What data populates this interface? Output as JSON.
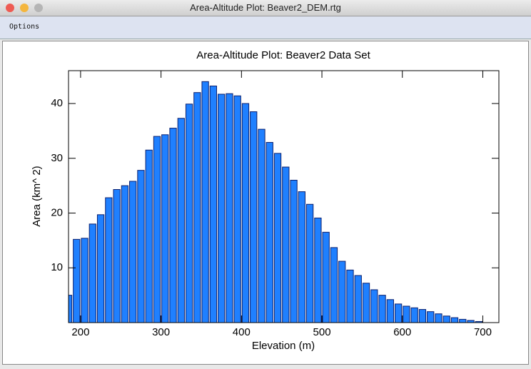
{
  "window": {
    "title": "Area-Altitude Plot: Beaver2_DEM.rtg",
    "menu": [
      "Options"
    ]
  },
  "chart_data": {
    "type": "histogram",
    "title": "Area-Altitude Plot: Beaver2 Data Set",
    "x_label": "Elevation (m)",
    "y_label": "Area (km^ 2)",
    "bins": [
      180,
      190,
      200,
      210,
      220,
      230,
      240,
      250,
      260,
      270,
      280,
      290,
      300,
      310,
      320,
      330,
      340,
      350,
      360,
      370,
      380,
      390,
      400,
      410,
      420,
      430,
      440,
      450,
      460,
      470,
      480,
      490,
      500,
      510,
      520,
      530,
      540,
      550,
      560,
      570,
      580,
      590,
      600,
      610,
      620,
      630,
      640,
      650,
      660,
      670,
      680,
      690,
      700
    ],
    "values": [
      5,
      15.2,
      15.4,
      18,
      19.7,
      22.8,
      24.3,
      25,
      25.8,
      27.8,
      31.5,
      34,
      34.3,
      35.5,
      37.3,
      39.9,
      42,
      44,
      43.2,
      41.7,
      41.8,
      41.4,
      40,
      38.5,
      35.3,
      32.9,
      30.9,
      28.4,
      26,
      23.9,
      21.6,
      19.1,
      16.5,
      13.7,
      11.2,
      9.6,
      8.6,
      7.2,
      6,
      5,
      4.2,
      3.4,
      3,
      2.7,
      2.4,
      2,
      1.6,
      1.2,
      0.9,
      0.6,
      0.4,
      0.2
    ],
    "color": "#1f80ff",
    "edge_color": "#0a1f6e",
    "xlim": [
      185,
      720
    ],
    "ylim": [
      0,
      46
    ],
    "xticks": [
      200,
      300,
      400,
      500,
      600,
      700
    ],
    "yticks": [
      10,
      20,
      30,
      40
    ]
  }
}
